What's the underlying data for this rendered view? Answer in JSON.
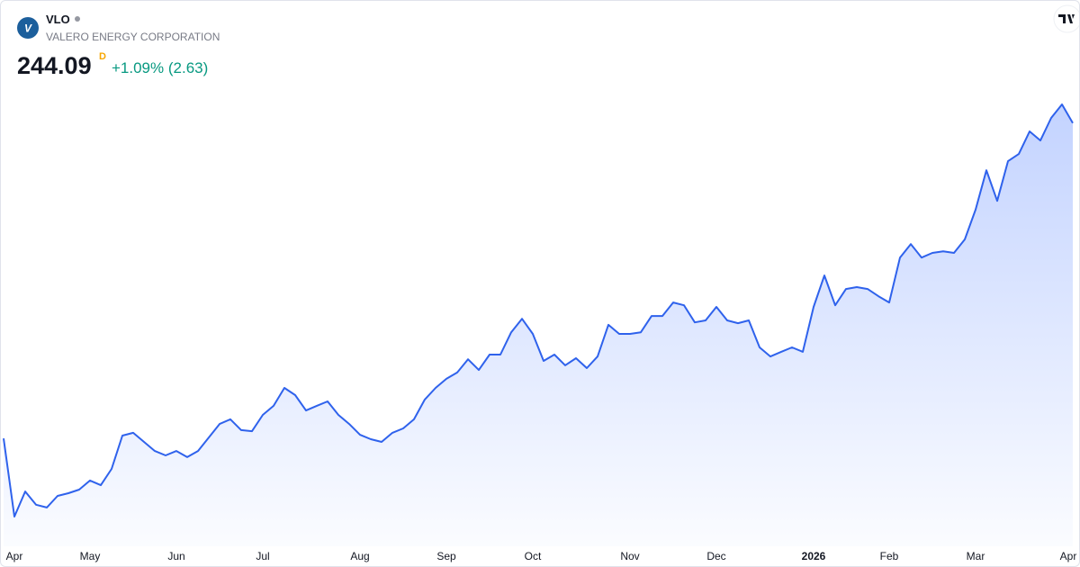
{
  "header": {
    "symbol": "VLO",
    "company": "VALERO ENERGY CORPORATION",
    "interval": "D",
    "change": "+1.09% (2.63)"
  },
  "chart_data": {
    "type": "area",
    "color": "#2f62ec",
    "categories": [
      null,
      "Apr",
      null,
      null,
      null,
      null,
      null,
      null,
      "May",
      null,
      null,
      null,
      null,
      null,
      null,
      null,
      "Jun",
      null,
      null,
      null,
      null,
      null,
      null,
      null,
      "Jul",
      null,
      null,
      null,
      null,
      null,
      null,
      null,
      null,
      "Aug",
      null,
      null,
      null,
      null,
      null,
      null,
      null,
      "Sep",
      null,
      null,
      null,
      null,
      null,
      null,
      null,
      "Oct",
      null,
      null,
      null,
      null,
      null,
      null,
      null,
      null,
      "Nov",
      null,
      null,
      null,
      null,
      null,
      null,
      null,
      "Dec",
      null,
      null,
      null,
      null,
      null,
      null,
      null,
      null,
      "2026",
      null,
      null,
      null,
      null,
      null,
      null,
      "Feb",
      null,
      null,
      null,
      null,
      null,
      null,
      null,
      "Mar",
      null,
      null,
      null,
      null,
      null,
      null,
      null,
      null,
      "Apr"
    ],
    "values": [
      129.7,
      101.3,
      110.4,
      105.6,
      104.6,
      108.8,
      109.8,
      111.1,
      114.4,
      112.7,
      118.6,
      130.7,
      131.7,
      128.4,
      125.1,
      123.5,
      125.1,
      122.9,
      125.1,
      130.0,
      134.9,
      136.6,
      132.7,
      132.3,
      138.2,
      141.5,
      148.0,
      145.4,
      139.8,
      141.5,
      143.1,
      138.2,
      134.9,
      131.0,
      129.4,
      128.4,
      131.7,
      133.3,
      136.6,
      143.8,
      148.0,
      151.3,
      153.6,
      158.4,
      154.5,
      160.1,
      160.1,
      168.2,
      173.1,
      167.6,
      157.8,
      160.1,
      156.2,
      158.8,
      155.2,
      159.4,
      170.9,
      167.6,
      167.6,
      168.2,
      174.1,
      174.1,
      179.0,
      178.0,
      171.8,
      172.5,
      177.4,
      172.5,
      171.5,
      172.5,
      162.7,
      159.4,
      161.1,
      162.7,
      161.1,
      177.4,
      188.8,
      178.0,
      183.9,
      184.6,
      183.9,
      181.3,
      179.0,
      195.3,
      200.2,
      195.3,
      197.0,
      197.6,
      197.0,
      201.9,
      212.7,
      227.0,
      215.9,
      230.3,
      232.9,
      241.1,
      237.8,
      246.0,
      250.9,
      244.09
    ]
  }
}
